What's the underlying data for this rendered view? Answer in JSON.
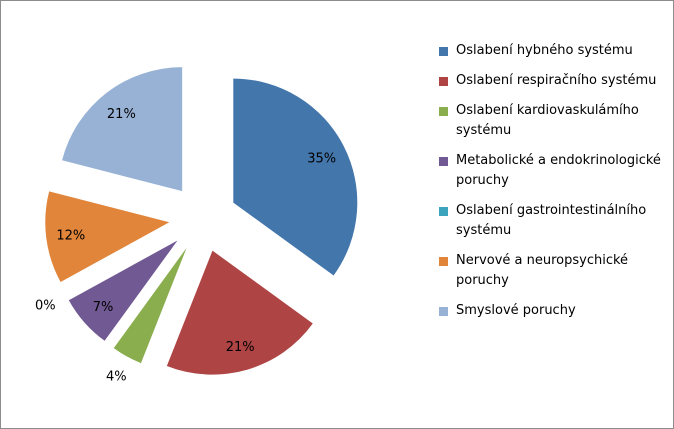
{
  "chart_data": {
    "type": "pie",
    "exploded": true,
    "legend_position": "right",
    "slices": [
      {
        "name": "Oslabení hybného systému",
        "value": 35,
        "label": "35%",
        "color": "#4376ab"
      },
      {
        "name": "Oslabení respiračního systému",
        "value": 21,
        "label": "21%",
        "color": "#ae4544"
      },
      {
        "name": "Oslabení kardiovaskulámího systému",
        "value": 4,
        "label": "4%",
        "color": "#8aae4e"
      },
      {
        "name": "Metabolické a endokrinologické poruchy",
        "value": 7,
        "label": "7%",
        "color": "#715993"
      },
      {
        "name": "Oslabení gastrointestinálního systému",
        "value": 0,
        "label": "0%",
        "color": "#3da4be"
      },
      {
        "name": "Nervové a neuropsychické poruchy",
        "value": 12,
        "label": "12%",
        "color": "#e0853a"
      },
      {
        "name": "Smyslové poruchy",
        "value": 21,
        "label": "21%",
        "color": "#98b2d6"
      }
    ]
  }
}
